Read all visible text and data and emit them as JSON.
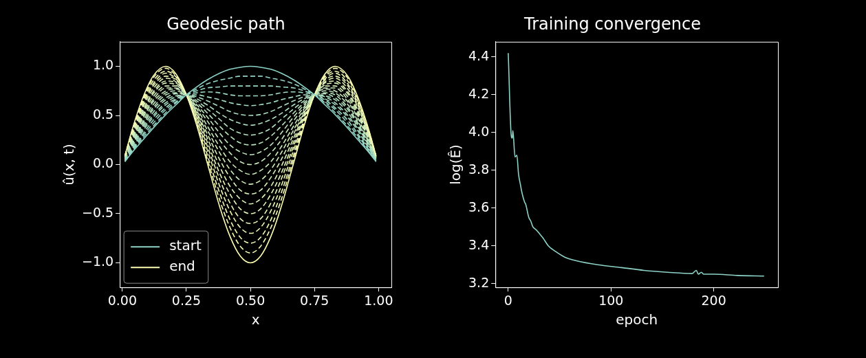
{
  "chart_data": [
    {
      "type": "line",
      "title": "Geodesic path",
      "xlabel": "x",
      "ylabel": "û(x, t)",
      "x": [
        0.01,
        0.04,
        0.08,
        0.12,
        0.17,
        0.21,
        0.25,
        0.29,
        0.33,
        0.38,
        0.42,
        0.46,
        0.5,
        0.54,
        0.58,
        0.62,
        0.67,
        0.71,
        0.75,
        0.79,
        0.83,
        0.88,
        0.92,
        0.96,
        0.99
      ],
      "xlim": [
        -0.01,
        1.05
      ],
      "xticks": [
        {
          "value": 0,
          "label": "0.00"
        },
        {
          "value": 0.25,
          "label": "0.25"
        },
        {
          "value": 0.5,
          "label": "0.50"
        },
        {
          "value": 0.75,
          "label": "0.75"
        },
        {
          "value": 1,
          "label": "1.00"
        }
      ],
      "ylim": [
        -1.25,
        1.25
      ],
      "yticks": [
        {
          "value": -1,
          "label": "−1.0"
        },
        {
          "value": -0.5,
          "label": "−0.5"
        },
        {
          "value": 0,
          "label": "0.0"
        },
        {
          "value": 0.5,
          "label": "0.5"
        },
        {
          "value": 1,
          "label": "1.0"
        }
      ],
      "grid": false,
      "legend": "bottom left",
      "marker": "none",
      "series": [
        {
          "name": "start",
          "color": "#8dd3c7",
          "line_style": "solid",
          "values": [
            0.03,
            0.13,
            0.25,
            0.37,
            0.51,
            0.61,
            0.71,
            0.79,
            0.86,
            0.93,
            0.97,
            0.99,
            1,
            0.99,
            0.97,
            0.93,
            0.86,
            0.79,
            0.71,
            0.61,
            0.51,
            0.37,
            0.25,
            0.13,
            0.03
          ]
        },
        {
          "name": "end",
          "color": "#feffb3",
          "line_style": "solid",
          "values": [
            0.09,
            0.37,
            0.68,
            0.9,
            1.0,
            0.92,
            0.71,
            0.4,
            0.03,
            -0.43,
            -0.73,
            -0.93,
            -1,
            -0.93,
            -0.73,
            -0.43,
            0.03,
            0.4,
            0.71,
            0.92,
            1.0,
            0.9,
            0.68,
            0.37,
            0.09
          ]
        },
        {
          "color": "#93d5c6",
          "line_style": "dashed",
          "values": [
            0.03,
            0.14,
            0.27,
            0.39,
            0.53,
            0.63,
            0.71,
            0.77,
            0.82,
            0.86,
            0.88,
            0.9,
            0.9,
            0.9,
            0.88,
            0.86,
            0.82,
            0.77,
            0.71,
            0.63,
            0.53,
            0.39,
            0.27,
            0.14,
            0.03
          ]
        },
        {
          "color": "#98d7c5",
          "line_style": "dashed",
          "values": [
            0.04,
            0.15,
            0.29,
            0.42,
            0.56,
            0.64,
            0.71,
            0.75,
            0.78,
            0.79,
            0.8,
            0.8,
            0.8,
            0.8,
            0.8,
            0.79,
            0.78,
            0.75,
            0.71,
            0.64,
            0.56,
            0.42,
            0.29,
            0.15,
            0.04
          ]
        },
        {
          "color": "#9edac4",
          "line_style": "dashed",
          "values": [
            0.04,
            0.16,
            0.31,
            0.45,
            0.58,
            0.66,
            0.71,
            0.73,
            0.74,
            0.73,
            0.71,
            0.7,
            0.7,
            0.7,
            0.71,
            0.73,
            0.74,
            0.73,
            0.71,
            0.66,
            0.58,
            0.45,
            0.31,
            0.16,
            0.04
          ]
        },
        {
          "color": "#a4dcc3",
          "line_style": "dashed",
          "values": [
            0.04,
            0.17,
            0.34,
            0.48,
            0.61,
            0.67,
            0.71,
            0.71,
            0.69,
            0.66,
            0.63,
            0.61,
            0.6,
            0.61,
            0.63,
            0.66,
            0.69,
            0.71,
            0.71,
            0.67,
            0.61,
            0.48,
            0.34,
            0.17,
            0.04
          ]
        },
        {
          "color": "#a9dec2",
          "line_style": "dashed",
          "values": [
            0.05,
            0.19,
            0.36,
            0.5,
            0.63,
            0.69,
            0.71,
            0.69,
            0.65,
            0.59,
            0.54,
            0.51,
            0.5,
            0.51,
            0.54,
            0.59,
            0.65,
            0.69,
            0.71,
            0.69,
            0.63,
            0.5,
            0.36,
            0.19,
            0.05
          ]
        },
        {
          "color": "#afe0c1",
          "line_style": "dashed",
          "values": [
            0.05,
            0.2,
            0.38,
            0.53,
            0.66,
            0.7,
            0.71,
            0.67,
            0.61,
            0.52,
            0.46,
            0.42,
            0.4,
            0.42,
            0.46,
            0.52,
            0.61,
            0.67,
            0.71,
            0.7,
            0.66,
            0.53,
            0.38,
            0.2,
            0.05
          ]
        },
        {
          "color": "#b5e2c0",
          "line_style": "dashed",
          "values": [
            0.05,
            0.21,
            0.4,
            0.56,
            0.68,
            0.72,
            0.71,
            0.65,
            0.57,
            0.46,
            0.37,
            0.32,
            0.3,
            0.32,
            0.37,
            0.46,
            0.57,
            0.65,
            0.71,
            0.72,
            0.68,
            0.56,
            0.4,
            0.21,
            0.05
          ]
        },
        {
          "color": "#bae5bf",
          "line_style": "dashed",
          "values": [
            0.06,
            0.22,
            0.42,
            0.58,
            0.71,
            0.73,
            0.71,
            0.63,
            0.53,
            0.39,
            0.29,
            0.22,
            0.2,
            0.22,
            0.29,
            0.39,
            0.53,
            0.63,
            0.71,
            0.73,
            0.71,
            0.58,
            0.42,
            0.22,
            0.06
          ]
        },
        {
          "color": "#c0e7be",
          "line_style": "dashed",
          "values": [
            0.06,
            0.23,
            0.44,
            0.61,
            0.73,
            0.75,
            0.71,
            0.61,
            0.49,
            0.32,
            0.2,
            0.13,
            0.1,
            0.13,
            0.2,
            0.32,
            0.49,
            0.61,
            0.71,
            0.75,
            0.73,
            0.61,
            0.44,
            0.23,
            0.06
          ]
        },
        {
          "color": "#c6e9bd",
          "line_style": "dashed",
          "values": [
            0.06,
            0.25,
            0.47,
            0.64,
            0.75,
            0.77,
            0.71,
            0.59,
            0.45,
            0.25,
            0.12,
            0.03,
            0,
            0.03,
            0.12,
            0.25,
            0.45,
            0.59,
            0.71,
            0.77,
            0.75,
            0.64,
            0.47,
            0.25,
            0.06
          ]
        },
        {
          "color": "#cbebbc",
          "line_style": "dashed",
          "values": [
            0.07,
            0.26,
            0.49,
            0.66,
            0.78,
            0.78,
            0.71,
            0.57,
            0.4,
            0.18,
            0.03,
            -0.06,
            -0.1,
            -0.06,
            0.03,
            0.18,
            0.4,
            0.57,
            0.71,
            0.78,
            0.78,
            0.66,
            0.49,
            0.26,
            0.07
          ]
        },
        {
          "color": "#d1edbb",
          "line_style": "dashed",
          "values": [
            0.07,
            0.27,
            0.51,
            0.69,
            0.8,
            0.8,
            0.71,
            0.55,
            0.36,
            0.12,
            -0.05,
            -0.16,
            -0.2,
            -0.16,
            -0.05,
            0.12,
            0.36,
            0.55,
            0.71,
            0.8,
            0.8,
            0.69,
            0.51,
            0.27,
            0.07
          ]
        },
        {
          "color": "#d6f0ba",
          "line_style": "dashed",
          "values": [
            0.07,
            0.28,
            0.53,
            0.72,
            0.83,
            0.81,
            0.71,
            0.53,
            0.32,
            0.05,
            -0.13,
            -0.26,
            -0.3,
            -0.26,
            -0.13,
            0.05,
            0.32,
            0.53,
            0.71,
            0.81,
            0.83,
            0.72,
            0.53,
            0.28,
            0.07
          ]
        },
        {
          "color": "#dcf2b9",
          "line_style": "dashed",
          "values": [
            0.08,
            0.3,
            0.55,
            0.74,
            0.85,
            0.83,
            0.71,
            0.52,
            0.28,
            -0.02,
            -0.22,
            -0.35,
            -0.4,
            -0.35,
            -0.22,
            -0.02,
            0.28,
            0.52,
            0.71,
            0.83,
            0.85,
            0.74,
            0.55,
            0.3,
            0.08
          ]
        },
        {
          "color": "#e2f4b8",
          "line_style": "dashed",
          "values": [
            0.08,
            0.31,
            0.58,
            0.77,
            0.88,
            0.84,
            0.71,
            0.5,
            0.24,
            -0.09,
            -0.3,
            -0.45,
            -0.5,
            -0.45,
            -0.3,
            -0.09,
            0.24,
            0.5,
            0.71,
            0.84,
            0.88,
            0.77,
            0.58,
            0.31,
            0.08
          ]
        },
        {
          "color": "#e7f6b7",
          "line_style": "dashed",
          "values": [
            0.08,
            0.32,
            0.6,
            0.8,
            0.9,
            0.86,
            0.71,
            0.48,
            0.2,
            -0.15,
            -0.39,
            -0.55,
            -0.6,
            -0.55,
            -0.39,
            -0.15,
            0.2,
            0.48,
            0.71,
            0.86,
            0.9,
            0.8,
            0.6,
            0.32,
            0.08
          ]
        },
        {
          "color": "#edf8b6",
          "line_style": "dashed",
          "values": [
            0.09,
            0.33,
            0.62,
            0.82,
            0.93,
            0.87,
            0.71,
            0.46,
            0.16,
            -0.22,
            -0.47,
            -0.64,
            -0.7,
            -0.64,
            -0.47,
            -0.22,
            0.16,
            0.46,
            0.71,
            0.87,
            0.93,
            0.82,
            0.62,
            0.33,
            0.09
          ]
        },
        {
          "color": "#f3fbb5",
          "line_style": "dashed",
          "values": [
            0.09,
            0.34,
            0.64,
            0.85,
            0.95,
            0.89,
            0.71,
            0.44,
            0.11,
            -0.29,
            -0.56,
            -0.74,
            -0.8,
            -0.74,
            -0.56,
            -0.29,
            0.11,
            0.44,
            0.71,
            0.89,
            0.95,
            0.85,
            0.64,
            0.34,
            0.09
          ]
        },
        {
          "color": "#f8fdb4",
          "line_style": "dashed",
          "values": [
            0.09,
            0.36,
            0.66,
            0.88,
            0.98,
            0.9,
            0.71,
            0.42,
            0.07,
            -0.36,
            -0.64,
            -0.83,
            -0.9,
            -0.83,
            -0.64,
            -0.36,
            0.07,
            0.42,
            0.71,
            0.9,
            0.98,
            0.88,
            0.66,
            0.36,
            0.09
          ]
        }
      ]
    },
    {
      "type": "line",
      "title": "Training convergence",
      "xlabel": "epoch",
      "ylabel": "log(Ê)",
      "x": [
        0,
        3,
        4,
        4.5,
        6.6,
        8.4,
        10,
        12,
        13,
        16,
        17,
        20,
        22,
        24,
        26,
        28,
        31,
        34,
        39,
        46,
        55,
        67,
        87,
        110,
        132,
        155,
        179,
        183,
        185,
        188,
        190,
        200,
        223,
        249
      ],
      "xlim": [
        -12.5,
        262.5
      ],
      "xticks": [
        0,
        100,
        200
      ],
      "ylim": [
        3.18,
        4.48
      ],
      "yticks": [
        3.2,
        3.4,
        3.6,
        3.8,
        {
          "value": 4,
          "label": "4.0"
        },
        4.2,
        4.4
      ],
      "grid": false,
      "marker": "none",
      "series": [
        {
          "color": "#8dd3c7",
          "values": [
            4.42,
            3.98,
            3.97,
            4.01,
            3.87,
            3.88,
            3.78,
            3.72,
            3.69,
            3.63,
            3.62,
            3.55,
            3.53,
            3.5,
            3.49,
            3.48,
            3.46,
            3.44,
            3.4,
            3.37,
            3.34,
            3.32,
            3.3,
            3.285,
            3.27,
            3.26,
            3.253,
            3.27,
            3.25,
            3.26,
            3.25,
            3.25,
            3.243,
            3.24
          ]
        }
      ]
    }
  ]
}
